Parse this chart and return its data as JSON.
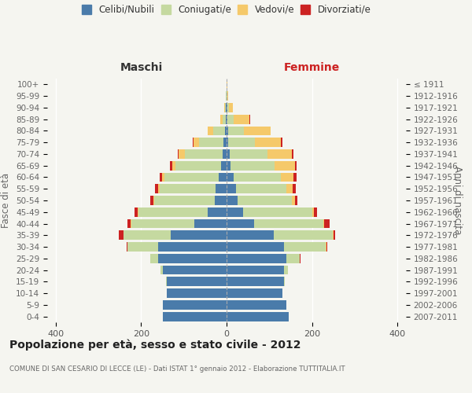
{
  "age_groups": [
    "100+",
    "95-99",
    "90-94",
    "85-89",
    "80-84",
    "75-79",
    "70-74",
    "65-69",
    "60-64",
    "55-59",
    "50-54",
    "45-49",
    "40-44",
    "35-39",
    "30-34",
    "25-29",
    "20-24",
    "15-19",
    "10-14",
    "5-9",
    "0-4"
  ],
  "birth_years": [
    "≤ 1911",
    "1912-1916",
    "1917-1921",
    "1922-1926",
    "1927-1931",
    "1932-1936",
    "1937-1941",
    "1942-1946",
    "1947-1951",
    "1952-1956",
    "1957-1961",
    "1962-1966",
    "1967-1971",
    "1972-1976",
    "1977-1981",
    "1982-1986",
    "1987-1991",
    "1992-1996",
    "1997-2001",
    "2002-2006",
    "2007-2011"
  ],
  "males_celibe": [
    0,
    0,
    1,
    2,
    4,
    7,
    10,
    12,
    18,
    25,
    28,
    45,
    75,
    130,
    160,
    160,
    150,
    140,
    140,
    150,
    150
  ],
  "males_coniugato": [
    0,
    1,
    3,
    8,
    28,
    58,
    88,
    108,
    128,
    132,
    142,
    162,
    148,
    112,
    72,
    18,
    4,
    1,
    0,
    0,
    0
  ],
  "males_vedovo": [
    0,
    0,
    1,
    5,
    12,
    12,
    14,
    8,
    5,
    3,
    2,
    1,
    1,
    0,
    0,
    0,
    0,
    0,
    0,
    0,
    0
  ],
  "males_divorziato": [
    0,
    0,
    0,
    0,
    0,
    2,
    3,
    4,
    6,
    8,
    7,
    8,
    8,
    10,
    2,
    1,
    0,
    0,
    0,
    0,
    0
  ],
  "females_nubile": [
    0,
    0,
    1,
    2,
    3,
    4,
    7,
    10,
    16,
    22,
    25,
    38,
    65,
    110,
    135,
    140,
    135,
    135,
    130,
    140,
    145
  ],
  "females_coniugata": [
    0,
    1,
    4,
    14,
    38,
    62,
    88,
    102,
    112,
    118,
    128,
    162,
    162,
    138,
    98,
    32,
    8,
    2,
    0,
    0,
    0
  ],
  "females_vedova": [
    1,
    3,
    10,
    38,
    62,
    62,
    58,
    48,
    28,
    14,
    7,
    4,
    2,
    2,
    1,
    0,
    0,
    0,
    0,
    0,
    0
  ],
  "females_divorziata": [
    0,
    0,
    0,
    2,
    1,
    3,
    4,
    4,
    8,
    8,
    5,
    8,
    12,
    5,
    2,
    1,
    0,
    0,
    0,
    0,
    0
  ],
  "color_celibe": "#4a7baa",
  "color_coniugato": "#c5d9a0",
  "color_vedovo": "#f5c96a",
  "color_divorziato": "#cc2222",
  "title": "Popolazione per età, sesso e stato civile - 2012",
  "subtitle": "COMUNE DI SAN CESARIO DI LECCE (LE) - Dati ISTAT 1° gennaio 2012 - Elaborazione TUTTITALIA.IT",
  "label_maschi": "Maschi",
  "label_femmine": "Femmine",
  "label_fasce": "Fasce di età",
  "label_anni": "Anni di nascita",
  "xlim": 420,
  "legend_labels": [
    "Celibi/Nubili",
    "Coniugati/e",
    "Vedovi/e",
    "Divorziati/e"
  ],
  "bg_color": "#f5f5f0"
}
